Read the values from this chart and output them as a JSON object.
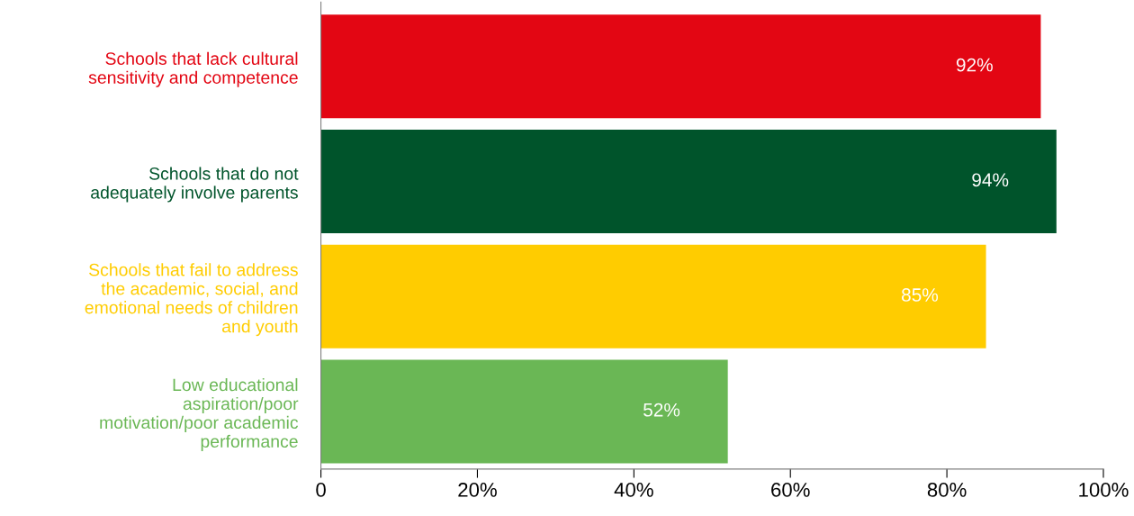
{
  "chart_data": {
    "type": "bar",
    "orientation": "horizontal",
    "categories": [
      "Schools that lack cultural\nsensitivity and competence",
      "Schools that do not\nadequately involve parents",
      "Schools that fail to address\nthe academic, social, and\nemotional needs of children\nand youth",
      "Low educational\naspiration/poor\nmotivation/poor academic\nperformance"
    ],
    "values": [
      92,
      94,
      85,
      52
    ],
    "value_labels": [
      "92%",
      "94%",
      "85%",
      "52%"
    ],
    "colors": [
      "#e30613",
      "#00542b",
      "#ffcc00",
      "#6ab755"
    ],
    "xlim": [
      0,
      100
    ],
    "xticks": [
      0,
      {
        "value": 20,
        "label": "20%"
      },
      {
        "value": 40,
        "label": "40%"
      },
      {
        "value": 60,
        "label": "60%"
      },
      {
        "value": 80,
        "label": "80%"
      },
      {
        "value": 100,
        "label": "100%"
      }
    ],
    "grid": false,
    "legend": false
  }
}
